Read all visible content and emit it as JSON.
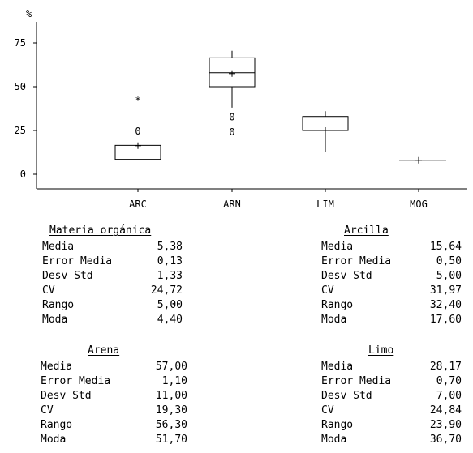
{
  "chart_data": {
    "type": "boxplot",
    "y_unit_label": "%",
    "ylim": [
      -8,
      85
    ],
    "yticks": [
      0,
      25,
      50,
      75
    ],
    "categories": [
      "ARC",
      "ARN",
      "LIM",
      "MOG"
    ],
    "boxes": [
      {
        "category": "ARC",
        "min": 8.5,
        "q1": 8.5,
        "median": 16.5,
        "q3": 16.5,
        "max": 16.5,
        "mean": 16.3,
        "outliers": [
          {
            "value": 25,
            "marker": "0"
          },
          {
            "value": 42.5,
            "marker": "*"
          }
        ]
      },
      {
        "category": "ARN",
        "min": 38,
        "q1": 50,
        "median": 58,
        "q3": 66.5,
        "max": 70.5,
        "mean": 57.5,
        "outliers": [
          {
            "value": 24.5,
            "marker": "0"
          },
          {
            "value": 33,
            "marker": "0"
          }
        ]
      },
      {
        "category": "LIM",
        "min": 12.5,
        "q1": 25,
        "median": 25,
        "q3": 33,
        "max": 36,
        "mean": 25,
        "outliers": []
      },
      {
        "category": "MOG",
        "min": 8,
        "q1": 8,
        "median": 8,
        "q3": 8,
        "max": 8,
        "mean": 8,
        "outliers": []
      }
    ]
  },
  "stats": [
    {
      "title": "Materia orgánica",
      "rows": [
        {
          "label": "Media",
          "value": "5,38"
        },
        {
          "label": "Error Media",
          "value": "0,13"
        },
        {
          "label": "Desv Std",
          "value": "1,33"
        },
        {
          "label": "CV",
          "value": "24,72"
        },
        {
          "label": "Rango",
          "value": "5,00"
        },
        {
          "label": "Moda",
          "value": "4,40"
        }
      ]
    },
    {
      "title": "Arcilla",
      "rows": [
        {
          "label": "Media",
          "value": "15,64"
        },
        {
          "label": "Error Media",
          "value": "0,50"
        },
        {
          "label": "Desv Std",
          "value": "5,00"
        },
        {
          "label": "CV",
          "value": "31,97"
        },
        {
          "label": "Rango",
          "value": "32,40"
        },
        {
          "label": "Moda",
          "value": "17,60"
        }
      ]
    },
    {
      "title": "Arena",
      "rows": [
        {
          "label": "Media",
          "value": "57,00"
        },
        {
          "label": "Error Media",
          "value": "1,10"
        },
        {
          "label": "Desv Std",
          "value": "11,00"
        },
        {
          "label": "CV",
          "value": "19,30"
        },
        {
          "label": "Rango",
          "value": "56,30"
        },
        {
          "label": "Moda",
          "value": "51,70"
        }
      ]
    },
    {
      "title": "Limo",
      "rows": [
        {
          "label": "Media",
          "value": "28,17"
        },
        {
          "label": "Error Media",
          "value": "0,70"
        },
        {
          "label": "Desv Std",
          "value": "7,00"
        },
        {
          "label": "CV",
          "value": "24,84"
        },
        {
          "label": "Rango",
          "value": "23,90"
        },
        {
          "label": "Moda",
          "value": "36,70"
        }
      ]
    }
  ]
}
